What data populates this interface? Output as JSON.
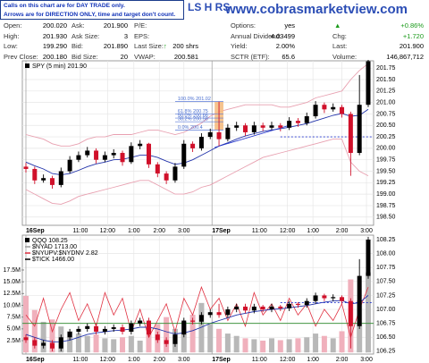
{
  "notice": [
    "Calls on this chart are for DAY TRADE only.",
    "Arrows are for DIRECTION ONLY, time and target don't count."
  ],
  "title_fragment": "LS H RS",
  "watermark": "www.cobrasmarketview.com",
  "quote": {
    "rows": [
      [
        {
          "label": "Open:",
          "value": "200.020"
        },
        {
          "label": "Ask:",
          "value": "201.900"
        },
        {
          "label": "P/E:"
        },
        {
          "label": "Options:",
          "value": "yes"
        },
        {
          "value": "+0.86%"
        }
      ],
      [
        {
          "label": "High:",
          "value": "201.930"
        },
        {
          "label": "Ask Size:",
          "value": "3"
        },
        {
          "label": "EPS:"
        },
        {
          "label": "Annual Dividend:",
          "value": "4.03499"
        },
        {
          "label": "Chg:",
          "value": "+1.720"
        }
      ],
      [
        {
          "label": "Low:",
          "value": "199.290"
        },
        {
          "label": "Bid:",
          "value": "201.890"
        },
        {
          "label": "Last Size:",
          "value": "200 shrs"
        },
        {
          "label": "Yield:",
          "value": "2.00%"
        },
        {
          "label": "Last:",
          "value": "201.900"
        }
      ],
      [
        {
          "label": "Prev Close:",
          "value": "200.180"
        },
        {
          "label": "Bid Size:",
          "value": "20"
        },
        {
          "label": "VWAP:",
          "value": "200.581"
        },
        {
          "label": "SCTR (ETF):",
          "value": "65.6"
        },
        {
          "label": "Volume:",
          "value": "146,867,712"
        }
      ]
    ]
  },
  "chart_data": [
    {
      "type": "candlestick",
      "legend": "SPY (5 min) 201.90",
      "up_color": "#000000",
      "down_color": "#d0102a",
      "candles": [
        [
          199.6,
          199.68,
          199.47,
          199.55
        ],
        [
          199.55,
          199.6,
          199.22,
          199.3
        ],
        [
          199.3,
          199.43,
          199.25,
          199.35
        ],
        [
          199.35,
          199.4,
          199.12,
          199.2
        ],
        [
          199.2,
          199.58,
          199.15,
          199.5
        ],
        [
          199.5,
          199.83,
          199.45,
          199.75
        ],
        [
          199.75,
          199.93,
          199.7,
          199.85
        ],
        [
          199.85,
          200.03,
          199.8,
          199.95
        ],
        [
          199.95,
          200.0,
          199.67,
          199.75
        ],
        [
          199.75,
          199.93,
          199.7,
          199.85
        ],
        [
          199.85,
          199.98,
          199.78,
          199.9
        ],
        [
          199.9,
          199.95,
          199.62,
          199.7
        ],
        [
          199.7,
          200.13,
          199.66,
          200.05
        ],
        [
          200.05,
          200.18,
          199.98,
          200.1
        ],
        [
          200.1,
          200.12,
          199.57,
          199.65
        ],
        [
          199.65,
          199.7,
          199.37,
          199.45
        ],
        [
          199.45,
          199.5,
          199.22,
          199.3
        ],
        [
          199.3,
          199.68,
          199.25,
          199.6
        ],
        [
          199.6,
          200.18,
          199.55,
          200.1
        ],
        [
          200.1,
          200.15,
          199.92,
          200.0
        ],
        [
          200.0,
          200.33,
          199.95,
          200.25
        ],
        [
          200.25,
          200.43,
          200.2,
          200.35
        ],
        [
          200.35,
          201.02,
          200.05,
          200.2
        ],
        [
          200.2,
          200.53,
          200.15,
          200.45
        ],
        [
          200.45,
          200.58,
          200.38,
          200.5
        ],
        [
          200.5,
          200.55,
          200.27,
          200.35
        ],
        [
          200.35,
          200.58,
          200.3,
          200.5
        ],
        [
          200.5,
          200.56,
          200.38,
          200.45
        ],
        [
          200.45,
          200.58,
          200.4,
          200.5
        ],
        [
          200.5,
          200.55,
          200.37,
          200.45
        ],
        [
          200.45,
          200.68,
          200.4,
          200.6
        ],
        [
          200.6,
          200.66,
          200.47,
          200.55
        ],
        [
          200.55,
          200.78,
          200.5,
          200.7
        ],
        [
          200.7,
          201.03,
          200.65,
          200.95
        ],
        [
          200.95,
          201.0,
          200.77,
          200.85
        ],
        [
          200.85,
          200.98,
          200.8,
          200.9
        ],
        [
          200.9,
          200.95,
          200.67,
          200.75
        ],
        [
          200.75,
          200.8,
          199.4,
          199.9
        ],
        [
          199.9,
          201.6,
          199.85,
          200.95
        ],
        [
          200.95,
          201.93,
          200.9,
          201.9
        ]
      ],
      "overlays": [
        {
          "color": "#2233aa",
          "values": [
            199.7,
            199.62,
            199.55,
            199.45,
            199.42,
            199.45,
            199.52,
            199.6,
            199.66,
            199.7,
            199.75,
            199.76,
            199.8,
            199.85,
            199.85,
            199.8,
            199.72,
            199.65,
            199.68,
            199.75,
            199.85,
            199.95,
            200.05,
            200.12,
            200.2,
            200.27,
            200.32,
            200.37,
            200.4,
            200.43,
            200.46,
            200.5,
            200.54,
            200.6,
            200.66,
            200.72,
            200.76,
            200.7,
            200.72,
            200.85
          ]
        },
        {
          "color": "#e8a0b0",
          "values": [
            200.3,
            200.25,
            200.2,
            200.1,
            200.05,
            200.05,
            200.1,
            200.2,
            200.25,
            200.25,
            200.3,
            200.3,
            200.3,
            200.35,
            200.4,
            200.4,
            200.35,
            200.3,
            200.35,
            200.45,
            200.55,
            200.7,
            200.8,
            200.85,
            200.9,
            200.95,
            200.95,
            200.95,
            200.95,
            200.9,
            200.9,
            200.95,
            201.0,
            201.1,
            201.15,
            201.2,
            201.25,
            201.5,
            201.7,
            201.85
          ]
        },
        {
          "color": "#e8a0b0",
          "values": [
            199.1,
            199.0,
            198.9,
            198.8,
            198.78,
            198.85,
            198.95,
            199.0,
            199.05,
            199.1,
            199.15,
            199.2,
            199.25,
            199.3,
            199.3,
            199.2,
            199.1,
            199.0,
            199.0,
            199.05,
            199.15,
            199.2,
            199.3,
            199.4,
            199.5,
            199.6,
            199.7,
            199.8,
            199.85,
            199.9,
            199.95,
            200.0,
            200.05,
            200.1,
            200.15,
            200.2,
            200.2,
            199.7,
            199.5,
            199.4
          ]
        }
      ],
      "fib": [
        {
          "value": 201.02,
          "label": "100.0% 201.02"
        },
        {
          "value": 200.75,
          "label": "61.8% 200.75"
        },
        {
          "value": 200.66,
          "label": "50.0% 200.66"
        },
        {
          "value": 200.58,
          "label": "38.2% 200.58"
        },
        {
          "value": 200.4,
          "label": "0.0% 200.4"
        }
      ],
      "hlines": [
        {
          "value": 200.25,
          "color": "#2233cc",
          "dash": true
        }
      ],
      "ylim": [
        198.32,
        201.91
      ],
      "yticks": [
        {
          "value": 198.5,
          "label": "198.50"
        },
        {
          "value": 198.75,
          "label": "198.75"
        },
        {
          "value": 199,
          "label": "199.00"
        },
        {
          "value": 199.25,
          "label": "199.25"
        },
        {
          "value": 199.5,
          "label": "199.50"
        },
        {
          "value": 199.75,
          "label": "199.75"
        },
        {
          "value": 200,
          "label": "200.00"
        },
        {
          "value": 200.25,
          "label": "200.25"
        },
        {
          "value": 200.5,
          "label": "200.50"
        },
        {
          "value": 200.75,
          "label": "200.75"
        },
        {
          "value": 201,
          "label": "201.00"
        },
        {
          "value": 201.25,
          "label": "201.25"
        },
        {
          "value": 201.5,
          "label": "201.50"
        },
        {
          "value": 201.75,
          "label": "201.75"
        }
      ],
      "xticks": [
        {
          "value": 0,
          "label": "16Sep"
        },
        {
          "value": 6.2,
          "label": "11:00"
        },
        {
          "value": 9.3,
          "label": "12:00"
        },
        {
          "value": 12.3,
          "label": "1:00"
        },
        {
          "value": 15.2,
          "label": "2:00"
        },
        {
          "value": 18.0,
          "label": "3:00"
        },
        {
          "value": 21.2,
          "label": "17Sep"
        },
        {
          "value": 26.6,
          "label": "11:00"
        },
        {
          "value": 29.8,
          "label": "12:00"
        },
        {
          "value": 32.7,
          "label": "1:00"
        },
        {
          "value": 36.0,
          "label": "2:00"
        },
        {
          "value": 38.8,
          "label": "3:00"
        }
      ],
      "grid": true
    },
    {
      "type": "candlestick",
      "legend": "QQQ 108.25",
      "up_color": "#000000",
      "down_color": "#d0102a",
      "legend_extra": [
        {
          "name": "$NYAD 1713.00",
          "color": "#999999"
        },
        {
          "name": "$TICK 1466.00",
          "color": "#000000"
        }
      ],
      "candles": [
        [
          106.5,
          106.55,
          106.4,
          106.45
        ],
        [
          106.45,
          106.5,
          106.3,
          106.35
        ],
        [
          106.35,
          106.45,
          106.3,
          106.4
        ],
        [
          106.4,
          106.45,
          106.25,
          106.3
        ],
        [
          106.3,
          106.55,
          106.25,
          106.5
        ],
        [
          106.5,
          106.65,
          106.45,
          106.6
        ],
        [
          106.6,
          106.7,
          106.55,
          106.65
        ],
        [
          106.65,
          106.75,
          106.6,
          106.7
        ],
        [
          106.7,
          106.75,
          106.55,
          106.6
        ],
        [
          106.6,
          106.7,
          106.55,
          106.65
        ],
        [
          106.65,
          106.73,
          106.6,
          106.68
        ],
        [
          106.68,
          106.73,
          106.55,
          106.6
        ],
        [
          106.6,
          106.8,
          106.55,
          106.75
        ],
        [
          106.75,
          106.85,
          106.7,
          106.8
        ],
        [
          106.8,
          106.85,
          106.5,
          106.55
        ],
        [
          106.55,
          106.6,
          106.4,
          106.45
        ],
        [
          106.45,
          106.5,
          106.33,
          106.38
        ],
        [
          106.38,
          106.6,
          106.33,
          106.55
        ],
        [
          106.55,
          106.85,
          106.5,
          106.8
        ],
        [
          106.8,
          106.85,
          106.73,
          106.78
        ],
        [
          106.78,
          106.95,
          106.73,
          106.9
        ],
        [
          106.9,
          107.0,
          106.85,
          106.95
        ],
        [
          106.95,
          107.1,
          106.85,
          106.9
        ],
        [
          106.9,
          107.05,
          106.85,
          107.0
        ],
        [
          107.0,
          107.1,
          106.95,
          107.05
        ],
        [
          107.05,
          107.1,
          106.93,
          106.98
        ],
        [
          106.98,
          107.1,
          106.93,
          107.05
        ],
        [
          107.05,
          107.08,
          106.95,
          107.0
        ],
        [
          107.0,
          107.1,
          106.95,
          107.05
        ],
        [
          107.05,
          107.08,
          106.97,
          107.02
        ],
        [
          107.02,
          107.15,
          106.97,
          107.1
        ],
        [
          107.1,
          107.13,
          107.03,
          107.08
        ],
        [
          107.08,
          107.2,
          107.03,
          107.15
        ],
        [
          107.15,
          107.3,
          107.1,
          107.25
        ],
        [
          107.25,
          107.28,
          107.15,
          107.2
        ],
        [
          107.2,
          107.27,
          107.15,
          107.22
        ],
        [
          107.22,
          107.25,
          107.1,
          107.15
        ],
        [
          107.15,
          107.2,
          106.3,
          106.7
        ],
        [
          106.7,
          107.9,
          106.65,
          107.6
        ],
        [
          107.6,
          108.3,
          107.55,
          108.25
        ]
      ],
      "overlays": [
        {
          "color": "#2233aa",
          "values": [
            106.55,
            106.5,
            106.45,
            106.42,
            106.42,
            106.45,
            106.5,
            106.55,
            106.58,
            106.6,
            106.62,
            106.63,
            106.65,
            106.68,
            106.68,
            106.65,
            106.6,
            106.56,
            106.58,
            106.62,
            106.68,
            106.75,
            106.8,
            106.85,
            106.9,
            106.93,
            106.96,
            106.98,
            107.0,
            107.01,
            107.03,
            107.05,
            107.07,
            107.1,
            107.13,
            107.15,
            107.16,
            107.1,
            107.12,
            107.25
          ]
        }
      ],
      "series": [
        {
          "name": "$NYUPV:$NYDNV 2.82",
          "color": "#e03040",
          "values": [
            106.9,
            106.7,
            107.2,
            106.6,
            107.0,
            107.3,
            106.8,
            107.1,
            106.7,
            107.3,
            106.9,
            107.2,
            106.6,
            107.0,
            106.5,
            106.8,
            107.1,
            106.6,
            107.2,
            106.9,
            107.4,
            107.0,
            107.2,
            106.8,
            107.1,
            106.7,
            107.3,
            106.9,
            107.1,
            106.8,
            107.2,
            106.9,
            107.1,
            106.7,
            107.0,
            106.8,
            107.1,
            106.5,
            107.0,
            107.4
          ]
        }
      ],
      "volume": {
        "values": [
          12.0,
          9.0,
          6.5,
          7.0,
          5.5,
          4.5,
          4.0,
          3.5,
          3.8,
          3.0,
          2.8,
          3.2,
          3.5,
          2.5,
          5.0,
          6.0,
          7.5,
          5.0,
          6.5,
          8.0,
          10.5,
          6.0,
          5.0,
          4.0,
          3.5,
          3.0,
          2.8,
          2.5,
          3.0,
          2.6,
          2.8,
          3.0,
          3.2,
          4.0,
          3.5,
          3.0,
          4.5,
          15.5,
          11.0,
          17.0
        ],
        "up_color": "#b8b8b8",
        "down_color": "#f0b0bc"
      },
      "hlines": [
        {
          "value": 106.75,
          "color": "#2a8a2a",
          "dash": false
        },
        {
          "value": 107.12,
          "color": "#2233cc",
          "dash": true
        }
      ],
      "ylim": [
        106.2,
        108.33
      ],
      "yticks": [
        {
          "value": 106.25,
          "label": "106.25"
        },
        {
          "value": 106.5,
          "label": "106.50"
        },
        {
          "value": 106.75,
          "label": "106.75"
        },
        {
          "value": 107,
          "label": "107.00"
        },
        {
          "value": 107.25,
          "label": "107.25"
        },
        {
          "value": 107.5,
          "label": "107.50"
        },
        {
          "value": 107.75,
          "label": "107.75"
        },
        {
          "value": 108,
          "label": "108.00"
        },
        {
          "value": 108.25,
          "label": "108.25"
        }
      ],
      "y2lim": [
        -0.35,
        24.9
      ],
      "y2ticks": [
        {
          "value": 2.5,
          "label": "2.5M"
        },
        {
          "value": 5,
          "label": "5.0M"
        },
        {
          "value": 7.5,
          "label": "7.5M"
        },
        {
          "value": 10,
          "label": "10.0M"
        },
        {
          "value": 12.5,
          "label": "12.5M"
        },
        {
          "value": 15,
          "label": "15.0M"
        },
        {
          "value": 17.5,
          "label": "17.5M"
        }
      ],
      "xticks": [
        {
          "value": 0,
          "label": "16Sep"
        },
        {
          "value": 6.2,
          "label": "11:00"
        },
        {
          "value": 9.3,
          "label": "12:00"
        },
        {
          "value": 12.3,
          "label": "1:00"
        },
        {
          "value": 15.2,
          "label": "2:00"
        },
        {
          "value": 18.0,
          "label": "3:00"
        },
        {
          "value": 21.2,
          "label": "17Sep"
        },
        {
          "value": 26.6,
          "label": "11:00"
        },
        {
          "value": 29.8,
          "label": "12:00"
        },
        {
          "value": 32.7,
          "label": "1:00"
        },
        {
          "value": 36.0,
          "label": "2:00"
        },
        {
          "value": 38.8,
          "label": "3:00"
        }
      ],
      "grid": true
    }
  ]
}
